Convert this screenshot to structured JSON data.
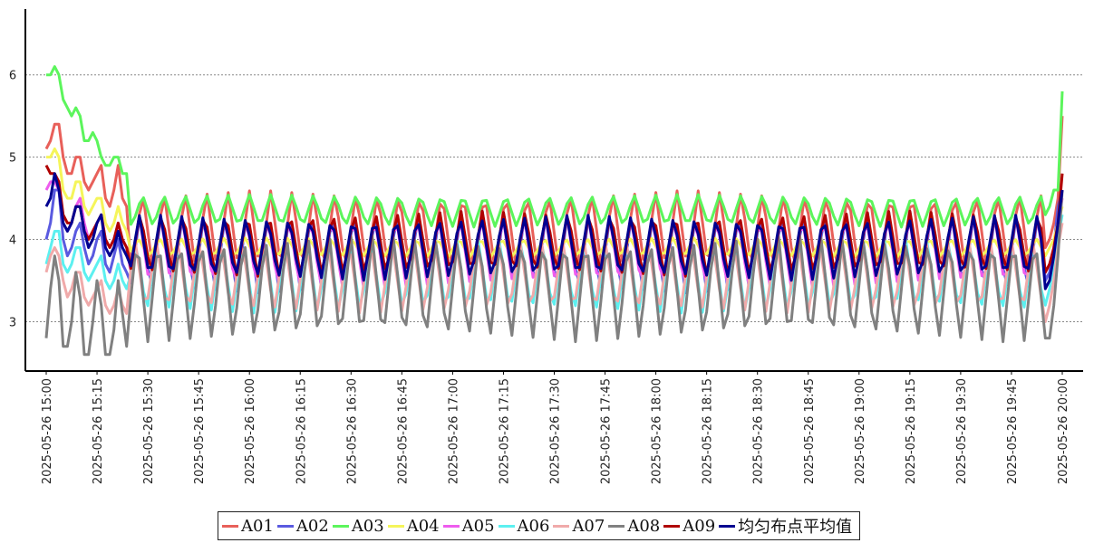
{
  "chart_data": {
    "type": "line",
    "x_start": "2025-05-26 15:00",
    "x_end": "2025-05-26 20:00",
    "x_tick_labels": [
      "2025-05-26 15:00",
      "2025-05-26 15:15",
      "2025-05-26 15:30",
      "2025-05-26 15:45",
      "2025-05-26 16:00",
      "2025-05-26 16:15",
      "2025-05-26 16:30",
      "2025-05-26 16:45",
      "2025-05-26 17:00",
      "2025-05-26 17:15",
      "2025-05-26 17:30",
      "2025-05-26 17:45",
      "2025-05-26 18:00",
      "2025-05-26 18:15",
      "2025-05-26 18:30",
      "2025-05-26 18:45",
      "2025-05-26 19:00",
      "2025-05-26 19:15",
      "2025-05-26 19:30",
      "2025-05-26 19:45",
      "2025-05-26 20:00"
    ],
    "y_ticks": [
      3,
      4,
      5,
      6
    ],
    "ylim": [
      2.4,
      6.8
    ],
    "grid": "horizontal-dashed",
    "legend_position": "bottom",
    "series": [
      {
        "name": "A01",
        "color": "#e8605a",
        "head": [
          5.1,
          5.2,
          5.4,
          5.4,
          5.0,
          4.8,
          4.8,
          5.0,
          5.0,
          4.7,
          4.6,
          4.7,
          4.8,
          4.9,
          4.5,
          4.4,
          4.6,
          4.9,
          4.5,
          4.4
        ],
        "base": 4.1,
        "amp": 0.5,
        "phase": 0.0,
        "tail": [
          3.9,
          4.0,
          4.2,
          4.5,
          5.5
        ]
      },
      {
        "name": "A02",
        "color": "#5a5ae0",
        "head": [
          4.0,
          4.2,
          4.6,
          4.6,
          4.0,
          3.8,
          3.9,
          4.1,
          4.2,
          3.9,
          3.7,
          3.8,
          4.0,
          4.1,
          3.7,
          3.6,
          3.8,
          4.0,
          3.7,
          3.6
        ],
        "base": 3.85,
        "amp": 0.5,
        "phase": 0.1,
        "tail": [
          3.5,
          3.6,
          3.9,
          4.4,
          4.6
        ]
      },
      {
        "name": "A03",
        "color": "#5cf55c",
        "head": [
          6.0,
          6.0,
          6.1,
          6.0,
          5.7,
          5.6,
          5.5,
          5.6,
          5.5,
          5.2,
          5.2,
          5.3,
          5.2,
          5.0,
          4.9,
          4.9,
          5.0,
          5.0,
          4.8,
          4.8
        ],
        "base": 4.35,
        "amp": 0.2,
        "phase": 0.0,
        "tail": [
          4.3,
          4.4,
          4.6,
          4.6,
          5.8
        ]
      },
      {
        "name": "A04",
        "color": "#f5f55a",
        "head": [
          5.0,
          5.0,
          5.1,
          5.0,
          4.6,
          4.5,
          4.5,
          4.7,
          4.7,
          4.4,
          4.3,
          4.4,
          4.5,
          4.5,
          4.2,
          4.1,
          4.2,
          4.4,
          4.2,
          4.1
        ],
        "base": 3.9,
        "amp": 0.12,
        "phase": 0.2,
        "tail": [
          3.8,
          3.9,
          4.0,
          4.2,
          4.4
        ]
      },
      {
        "name": "A05",
        "color": "#ee5cee",
        "head": [
          4.6,
          4.7,
          4.7,
          4.6,
          4.2,
          4.1,
          4.2,
          4.4,
          4.5,
          4.2,
          4.0,
          4.1,
          4.2,
          4.3,
          4.0,
          3.9,
          4.0,
          4.2,
          4.0,
          3.9
        ],
        "base": 3.85,
        "amp": 0.45,
        "phase": 0.15,
        "tail": [
          3.6,
          3.7,
          3.9,
          4.2,
          4.5
        ]
      },
      {
        "name": "A06",
        "color": "#5cf0f0",
        "head": [
          3.7,
          3.9,
          4.1,
          4.1,
          3.7,
          3.6,
          3.7,
          3.9,
          3.9,
          3.6,
          3.5,
          3.6,
          3.7,
          3.8,
          3.5,
          3.4,
          3.5,
          3.7,
          3.5,
          3.4
        ],
        "base": 3.55,
        "amp": 0.45,
        "phase": 0.3,
        "tail": [
          3.2,
          3.4,
          3.7,
          4.0,
          4.3
        ]
      },
      {
        "name": "A07",
        "color": "#f0aaaa",
        "head": [
          3.6,
          3.8,
          3.9,
          3.8,
          3.5,
          3.3,
          3.4,
          3.6,
          3.6,
          3.3,
          3.2,
          3.3,
          3.4,
          3.5,
          3.2,
          3.1,
          3.2,
          3.4,
          3.2,
          3.1
        ],
        "base": 3.55,
        "amp": 0.45,
        "phase": 0.35,
        "tail": [
          3.0,
          3.2,
          3.5,
          3.9,
          4.2
        ]
      },
      {
        "name": "A08",
        "color": "#808080",
        "head": [
          2.8,
          3.4,
          3.8,
          3.5,
          2.7,
          2.7,
          3.0,
          3.6,
          3.3,
          2.6,
          2.6,
          3.0,
          3.5,
          3.2,
          2.6,
          2.6,
          2.9,
          3.5,
          3.1,
          2.7
        ],
        "base": 3.4,
        "amp": 0.65,
        "phase": 0.25,
        "tail": [
          2.8,
          2.8,
          3.2,
          3.8,
          4.6
        ]
      },
      {
        "name": "A09",
        "color": "#b00000",
        "head": [
          4.9,
          4.8,
          4.8,
          4.7,
          4.3,
          4.2,
          4.2,
          4.4,
          4.4,
          4.1,
          4.0,
          4.1,
          4.2,
          4.3,
          4.0,
          3.9,
          4.0,
          4.2,
          4.0,
          3.9
        ],
        "base": 3.95,
        "amp": 0.4,
        "phase": 0.1,
        "tail": [
          3.6,
          3.7,
          3.9,
          4.2,
          4.8
        ]
      },
      {
        "name": "均匀布点平均值",
        "color": "#000090",
        "head": [
          4.4,
          4.5,
          4.8,
          4.6,
          4.2,
          4.1,
          4.2,
          4.4,
          4.4,
          4.1,
          3.9,
          4.0,
          4.2,
          4.3,
          3.9,
          3.8,
          3.9,
          4.1,
          3.9,
          3.8
        ],
        "base": 3.9,
        "amp": 0.4,
        "phase": 0.15,
        "tail": [
          3.4,
          3.5,
          3.8,
          4.2,
          4.6
        ]
      }
    ]
  }
}
